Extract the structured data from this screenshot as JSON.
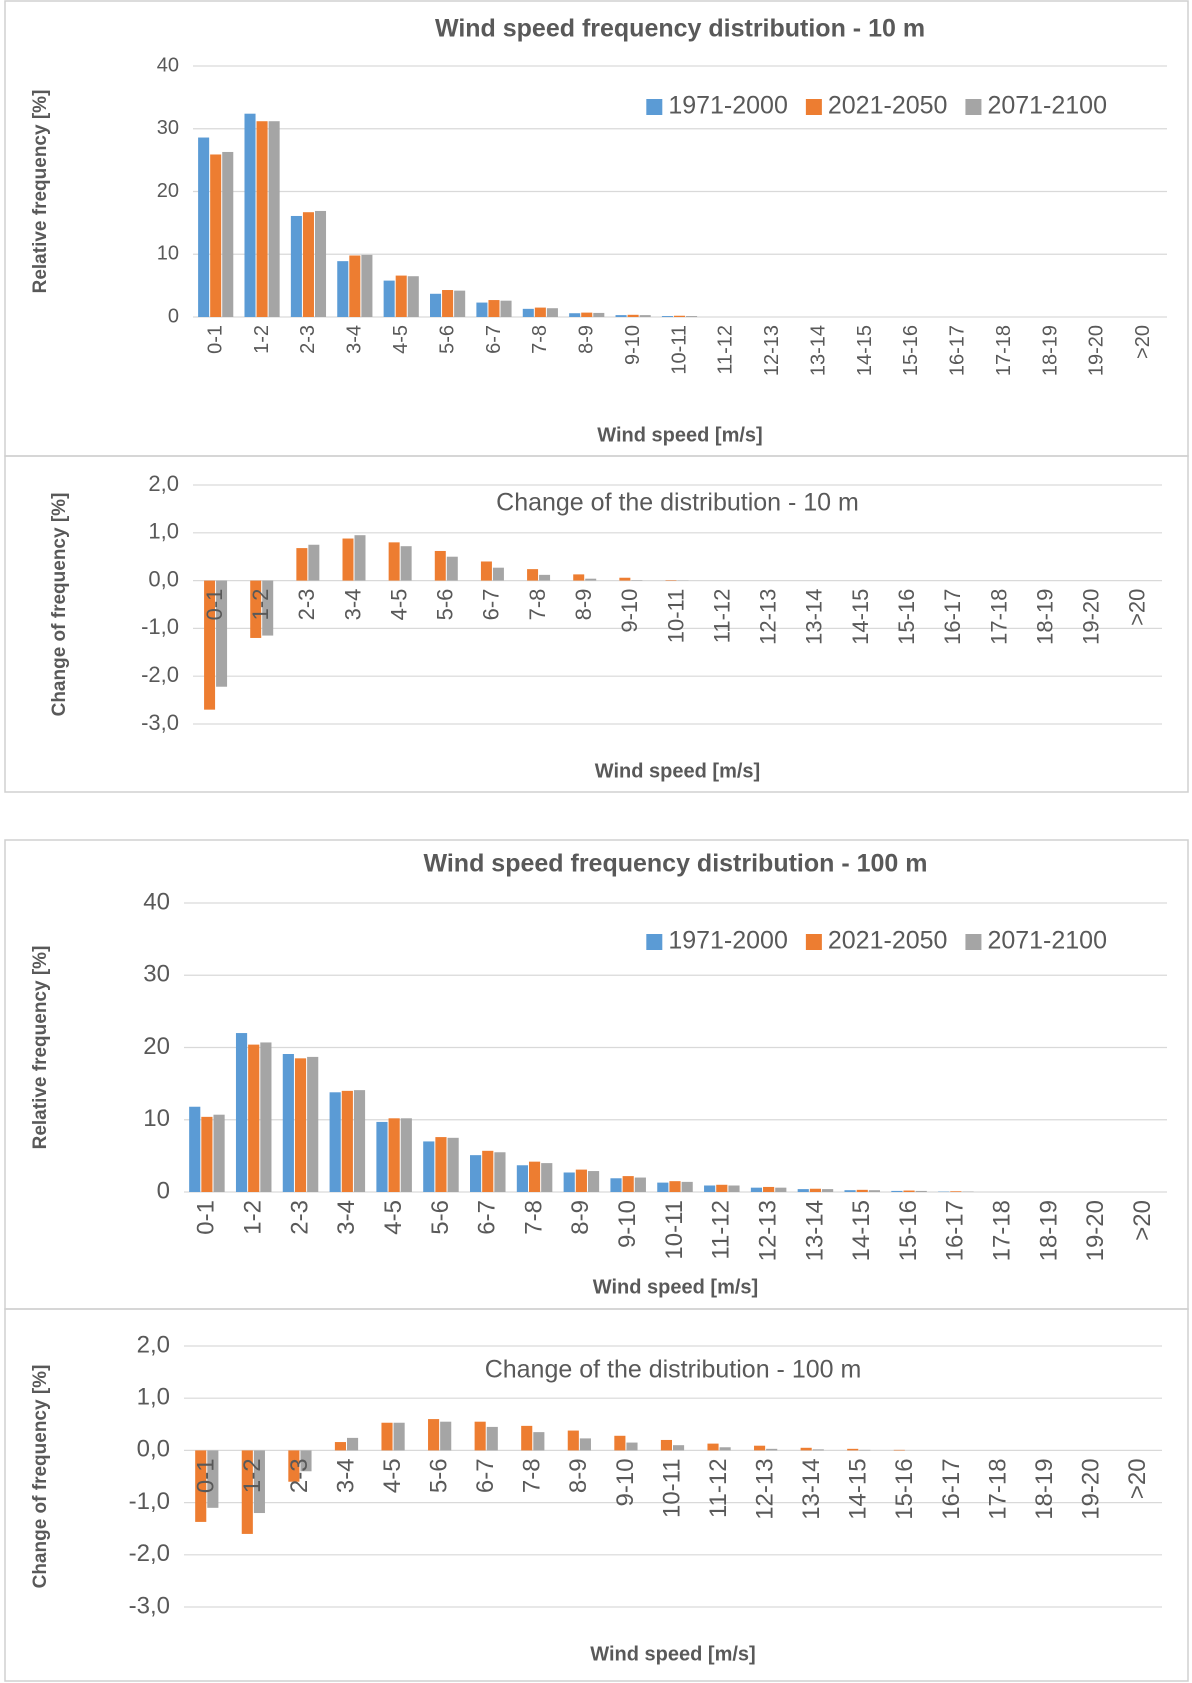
{
  "chart_data": [
    {
      "type": "bar",
      "title": "Wind speed frequency distribution - 10 m",
      "y_label": "Relative frequency [%]",
      "x_label": "Wind speed [m/s]",
      "categories": [
        "0-1",
        "1-2",
        "2-3",
        "3-4",
        "4-5",
        "5-6",
        "6-7",
        "7-8",
        "8-9",
        "9-10",
        "10-11",
        "11-12",
        "12-13",
        "13-14",
        "14-15",
        "15-16",
        "16-17",
        "17-18",
        "18-19",
        "19-20",
        ">20"
      ],
      "series": [
        {
          "name": "1971-2000",
          "color": "#5b9bd5",
          "values": [
            28.6,
            32.4,
            16.1,
            8.9,
            5.8,
            3.7,
            2.3,
            1.3,
            0.6,
            0.3,
            0.15,
            0,
            0,
            0,
            0,
            0,
            0,
            0,
            0,
            0,
            0
          ]
        },
        {
          "name": "2021-2050",
          "color": "#ed7d31",
          "values": [
            25.9,
            31.2,
            16.7,
            9.8,
            6.6,
            4.3,
            2.7,
            1.5,
            0.7,
            0.35,
            0.2,
            0,
            0,
            0,
            0,
            0,
            0,
            0,
            0,
            0,
            0
          ]
        },
        {
          "name": "2071-2100",
          "color": "#a5a5a5",
          "values": [
            26.3,
            31.2,
            16.9,
            9.9,
            6.5,
            4.2,
            2.6,
            1.4,
            0.65,
            0.3,
            0.15,
            0,
            0,
            0,
            0,
            0,
            0,
            0,
            0,
            0,
            0
          ]
        }
      ],
      "ylim": [
        0,
        40
      ],
      "yticks": [
        0,
        10,
        20,
        30,
        40
      ],
      "grid": true,
      "legend": "top-right"
    },
    {
      "type": "bar",
      "title": "Change of the distribution - 10 m",
      "y_label": "Change of frequency [%]",
      "x_label": "Wind speed [m/s]",
      "categories": [
        "0-1",
        "1-2",
        "2-3",
        "3-4",
        "4-5",
        "5-6",
        "6-7",
        "7-8",
        "8-9",
        "9-10",
        "10-11",
        "11-12",
        "12-13",
        "13-14",
        "14-15",
        "15-16",
        "16-17",
        "17-18",
        "18-19",
        "19-20",
        ">20"
      ],
      "series": [
        {
          "color": "#ed7d31",
          "values": [
            -2.7,
            -1.2,
            0.68,
            0.88,
            0.8,
            0.62,
            0.4,
            0.24,
            0.13,
            0.06,
            0.01,
            0,
            0,
            0,
            0,
            0,
            0,
            0,
            0,
            0,
            0
          ]
        },
        {
          "color": "#a5a5a5",
          "values": [
            -2.22,
            -1.15,
            0.75,
            0.95,
            0.72,
            0.5,
            0.27,
            0.12,
            0.04,
            0.01,
            0.005,
            0,
            0,
            0,
            0,
            0,
            0,
            0,
            0,
            0,
            0
          ]
        }
      ],
      "ylim": [
        -3,
        2
      ],
      "yticks": [
        {
          "value": -3,
          "label": "-3,0"
        },
        {
          "value": -2,
          "label": "-2,0"
        },
        {
          "value": -1,
          "label": "-1,0"
        },
        {
          "value": 0,
          "label": "0,0"
        },
        {
          "value": 1,
          "label": "1,0"
        },
        {
          "value": 2,
          "label": "2,0"
        }
      ],
      "grid": true
    },
    {
      "type": "bar",
      "title": "Wind speed frequency distribution - 100 m",
      "y_label": "Relative frequency [%]",
      "x_label": "Wind speed [m/s]",
      "categories": [
        "0-1",
        "1-2",
        "2-3",
        "3-4",
        "4-5",
        "5-6",
        "6-7",
        "7-8",
        "8-9",
        "9-10",
        "10-11",
        "11-12",
        "12-13",
        "13-14",
        "14-15",
        "15-16",
        "16-17",
        "17-18",
        "18-19",
        "19-20",
        ">20"
      ],
      "series": [
        {
          "name": "1971-2000",
          "color": "#5b9bd5",
          "values": [
            11.8,
            22.0,
            19.1,
            13.8,
            9.7,
            7.0,
            5.1,
            3.7,
            2.7,
            1.9,
            1.3,
            0.9,
            0.6,
            0.4,
            0.25,
            0.15,
            0.05,
            0,
            0,
            0,
            0
          ]
        },
        {
          "name": "2021-2050",
          "color": "#ed7d31",
          "values": [
            10.4,
            20.4,
            18.5,
            14.0,
            10.2,
            7.6,
            5.7,
            4.2,
            3.1,
            2.2,
            1.5,
            1.0,
            0.7,
            0.45,
            0.3,
            0.2,
            0.1,
            0,
            0,
            0,
            0
          ]
        },
        {
          "name": "2071-2100",
          "color": "#a5a5a5",
          "values": [
            10.7,
            20.7,
            18.7,
            14.1,
            10.2,
            7.5,
            5.5,
            4.0,
            2.9,
            2.0,
            1.4,
            0.9,
            0.6,
            0.4,
            0.25,
            0.15,
            0.05,
            0,
            0,
            0,
            0
          ]
        }
      ],
      "ylim": [
        0,
        40
      ],
      "yticks": [
        0,
        10,
        20,
        30,
        40
      ],
      "grid": true,
      "legend": "top-right"
    },
    {
      "type": "bar",
      "title": "Change of the distribution - 100 m",
      "y_label": "Change of frequency [%]",
      "x_label": "Wind speed [m/s]",
      "categories": [
        "0-1",
        "1-2",
        "2-3",
        "3-4",
        "4-5",
        "5-6",
        "6-7",
        "7-8",
        "8-9",
        "9-10",
        "10-11",
        "11-12",
        "12-13",
        "13-14",
        "14-15",
        "15-16",
        "16-17",
        "17-18",
        "18-19",
        "19-20",
        ">20"
      ],
      "series": [
        {
          "color": "#ed7d31",
          "values": [
            -1.37,
            -1.6,
            -0.6,
            0.16,
            0.53,
            0.6,
            0.55,
            0.47,
            0.38,
            0.28,
            0.2,
            0.13,
            0.09,
            0.05,
            0.03,
            0.01,
            0,
            0,
            0,
            0,
            0
          ]
        },
        {
          "color": "#a5a5a5",
          "values": [
            -1.1,
            -1.2,
            -0.4,
            0.24,
            0.53,
            0.55,
            0.45,
            0.35,
            0.23,
            0.15,
            0.1,
            0.06,
            0.03,
            0.02,
            0.01,
            0,
            0,
            0,
            0,
            0,
            0
          ]
        }
      ],
      "ylim": [
        -3,
        2
      ],
      "yticks": [
        {
          "value": -3,
          "label": "-3,0"
        },
        {
          "value": -2,
          "label": "-2,0"
        },
        {
          "value": -1,
          "label": "-1,0"
        },
        {
          "value": 0,
          "label": "0,0"
        },
        {
          "value": 1,
          "label": "1,0"
        },
        {
          "value": 2,
          "label": "2,0"
        }
      ],
      "grid": true
    }
  ]
}
